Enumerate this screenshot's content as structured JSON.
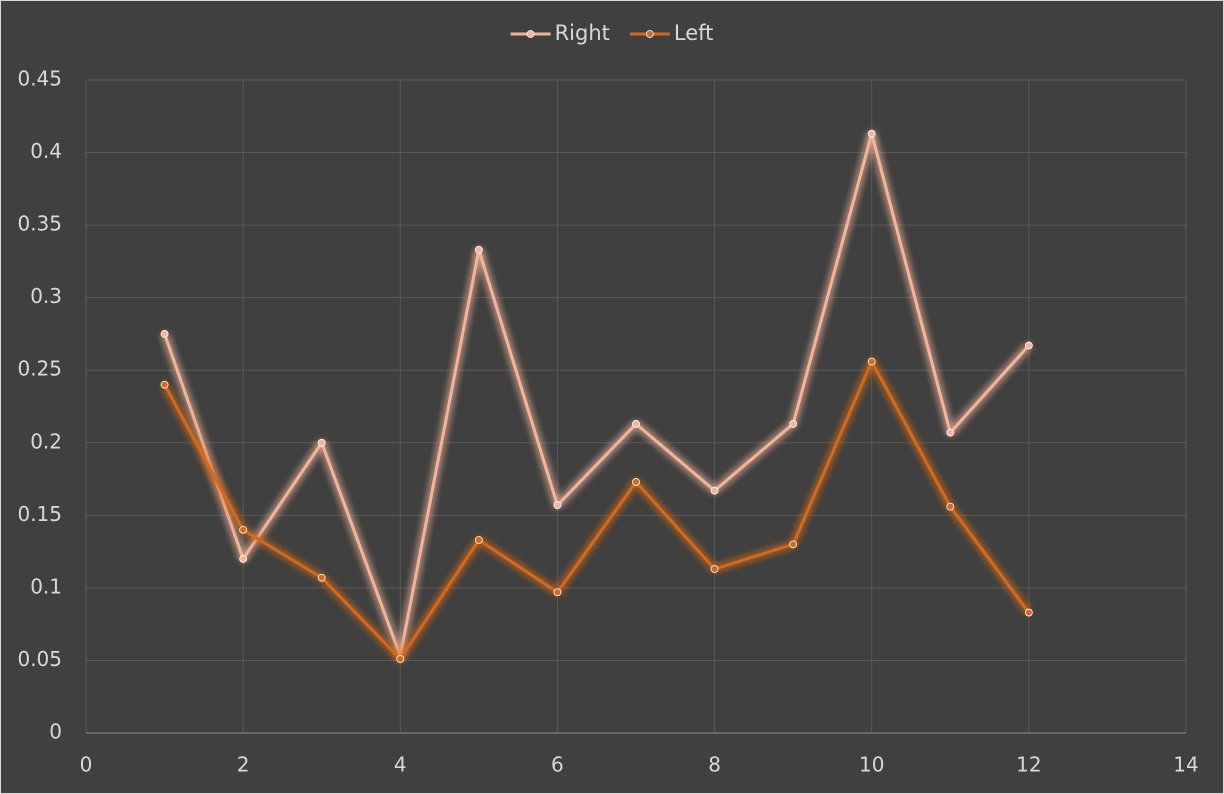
{
  "chart_data": {
    "type": "line",
    "x": [
      1,
      2,
      3,
      4,
      5,
      6,
      7,
      8,
      9,
      10,
      11,
      12
    ],
    "series": [
      {
        "name": "Right",
        "color": "#f2b49a",
        "values": [
          0.275,
          0.12,
          0.2,
          0.053,
          0.333,
          0.157,
          0.213,
          0.167,
          0.213,
          0.413,
          0.207,
          0.267
        ]
      },
      {
        "name": "Left",
        "color": "#d2691e",
        "values": [
          0.24,
          0.14,
          0.107,
          0.051,
          0.133,
          0.097,
          0.173,
          0.113,
          0.13,
          0.256,
          0.156,
          0.083
        ]
      }
    ],
    "xlim": [
      0,
      14
    ],
    "xticks": [
      0,
      2,
      4,
      6,
      8,
      10,
      12,
      14
    ],
    "ylim": [
      0,
      0.45
    ],
    "yticks": [
      0,
      0.05,
      0.1,
      0.15,
      0.2,
      0.25,
      0.3,
      0.35,
      0.4,
      0.45
    ],
    "grid": true,
    "legend": "top"
  }
}
